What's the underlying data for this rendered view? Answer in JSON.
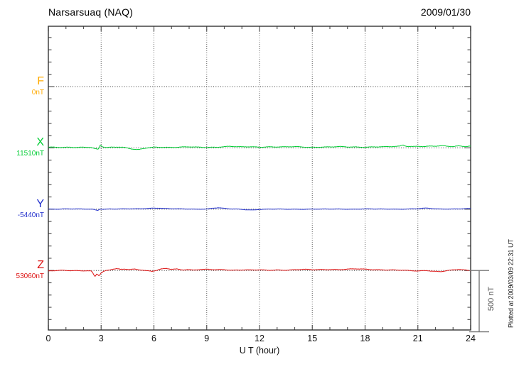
{
  "header": {
    "title": "Narsarsuaq (NAQ)",
    "date": "2009/01/30"
  },
  "chart_data": {
    "type": "line",
    "title": "Narsarsuaq (NAQ)",
    "date": "2009/01/30",
    "xlabel": "U T (hour)",
    "x_range": [
      0,
      24
    ],
    "x_ticks": [
      0,
      3,
      6,
      9,
      12,
      15,
      18,
      21,
      24
    ],
    "x_minor_step_hours": 1,
    "y_minor_tick_nT": 100,
    "series_baseline_spacing_nT": 500,
    "grid": "dotted vertical lines at 3-hour intervals, dotted horizontal baseline per component",
    "scale_bar": {
      "label": "500 nT",
      "value_nT": 500,
      "color": "#777777"
    },
    "plotted_at": "Plotted at 2009/03/09 22:31 UT",
    "series": [
      {
        "name": "F",
        "color": "#FFAA00",
        "baseline_label": "0nT",
        "baseline_nT": 0,
        "has_data": false,
        "noise_nT": 0,
        "points": []
      },
      {
        "name": "X",
        "color": "#00CC33",
        "baseline_label": "11510nT",
        "baseline_nT": 11510,
        "has_data": true,
        "noise_nT": 4,
        "points": [
          [
            0,
            6
          ],
          [
            0.5,
            5
          ],
          [
            1,
            7
          ],
          [
            1.5,
            5
          ],
          [
            2,
            4
          ],
          [
            2.4,
            3
          ],
          [
            2.7,
            -10
          ],
          [
            2.85,
            -13
          ],
          [
            2.95,
            22
          ],
          [
            3.1,
            8
          ],
          [
            3.3,
            4
          ],
          [
            3.6,
            7
          ],
          [
            4,
            9
          ],
          [
            4.3,
            5
          ],
          [
            4.6,
            -5
          ],
          [
            4.9,
            -13
          ],
          [
            5.15,
            -16
          ],
          [
            5.4,
            -7
          ],
          [
            5.7,
            1
          ],
          [
            6,
            6
          ],
          [
            6.5,
            7
          ],
          [
            7,
            5
          ],
          [
            7.5,
            6
          ],
          [
            8,
            7
          ],
          [
            8.5,
            5
          ],
          [
            9,
            5
          ],
          [
            9.5,
            7
          ],
          [
            10,
            10
          ],
          [
            10.3,
            13
          ],
          [
            10.7,
            8
          ],
          [
            11,
            7
          ],
          [
            11.5,
            9
          ],
          [
            12,
            7
          ],
          [
            12.5,
            10
          ],
          [
            13,
            8
          ],
          [
            13.5,
            7
          ],
          [
            14,
            9
          ],
          [
            14.5,
            7
          ],
          [
            15,
            6
          ],
          [
            15.5,
            8
          ],
          [
            16,
            7
          ],
          [
            16.5,
            9
          ],
          [
            17,
            7
          ],
          [
            17.5,
            8
          ],
          [
            18,
            7
          ],
          [
            18.5,
            9
          ],
          [
            19,
            8
          ],
          [
            19.5,
            9
          ],
          [
            19.95,
            13
          ],
          [
            20.15,
            24
          ],
          [
            20.35,
            14
          ],
          [
            20.7,
            12
          ],
          [
            21,
            15
          ],
          [
            21.4,
            11
          ],
          [
            21.7,
            14
          ],
          [
            22,
            13
          ],
          [
            22.5,
            15
          ],
          [
            23,
            11
          ],
          [
            23.35,
            18
          ],
          [
            23.7,
            13
          ],
          [
            24,
            15
          ]
        ]
      },
      {
        "name": "Y",
        "color": "#2230CC",
        "baseline_label": "-5440nT",
        "baseline_nT": -5440,
        "has_data": true,
        "noise_nT": 2.5,
        "points": [
          [
            0,
            2
          ],
          [
            0.5,
            1
          ],
          [
            1,
            2
          ],
          [
            1.5,
            1
          ],
          [
            2,
            1
          ],
          [
            2.5,
            1
          ],
          [
            2.8,
            -9
          ],
          [
            2.95,
            3
          ],
          [
            3.1,
            0
          ],
          [
            3.5,
            2
          ],
          [
            4,
            1
          ],
          [
            4.5,
            2
          ],
          [
            5,
            3
          ],
          [
            5.5,
            6
          ],
          [
            5.9,
            9
          ],
          [
            6.3,
            9
          ],
          [
            6.6,
            5
          ],
          [
            7,
            3
          ],
          [
            7.5,
            2
          ],
          [
            8,
            2
          ],
          [
            8.5,
            1
          ],
          [
            9,
            2
          ],
          [
            9.35,
            8
          ],
          [
            9.65,
            11
          ],
          [
            9.95,
            6
          ],
          [
            10.3,
            2
          ],
          [
            10.8,
            1
          ],
          [
            11.3,
            -4
          ],
          [
            11.6,
            -6
          ],
          [
            12,
            -2
          ],
          [
            12.5,
            0
          ],
          [
            13,
            1
          ],
          [
            13.5,
            0
          ],
          [
            14,
            1
          ],
          [
            14.5,
            0
          ],
          [
            15,
            1
          ],
          [
            15.5,
            0
          ],
          [
            16,
            1
          ],
          [
            16.5,
            2
          ],
          [
            17,
            1
          ],
          [
            17.5,
            1
          ],
          [
            18,
            2
          ],
          [
            18.5,
            1
          ],
          [
            19,
            1
          ],
          [
            19.5,
            2
          ],
          [
            20,
            1
          ],
          [
            20.5,
            2
          ],
          [
            21,
            3
          ],
          [
            21.45,
            8
          ],
          [
            21.8,
            5
          ],
          [
            22.2,
            2
          ],
          [
            22.6,
            3
          ],
          [
            23,
            2
          ],
          [
            23.5,
            3
          ],
          [
            24,
            4
          ]
        ]
      },
      {
        "name": "Z",
        "color": "#DD1111",
        "baseline_label": "53060nT",
        "baseline_nT": 53060,
        "has_data": true,
        "noise_nT": 4,
        "points": [
          [
            0,
            -5
          ],
          [
            0.4,
            -2
          ],
          [
            0.8,
            0
          ],
          [
            1.3,
            -1
          ],
          [
            1.8,
            0
          ],
          [
            2.2,
            -1
          ],
          [
            2.45,
            -4
          ],
          [
            2.55,
            -26
          ],
          [
            2.65,
            -50
          ],
          [
            2.75,
            -27
          ],
          [
            2.88,
            -43
          ],
          [
            3,
            -22
          ],
          [
            3.15,
            -9
          ],
          [
            3.3,
            -2
          ],
          [
            3.5,
            4
          ],
          [
            3.7,
            11
          ],
          [
            3.9,
            14
          ],
          [
            4.1,
            9
          ],
          [
            4.35,
            13
          ],
          [
            4.6,
            10
          ],
          [
            4.9,
            13
          ],
          [
            5.1,
            8
          ],
          [
            5.35,
            4
          ],
          [
            5.6,
            -3
          ],
          [
            5.9,
            -8
          ],
          [
            6.15,
            0
          ],
          [
            6.4,
            10
          ],
          [
            6.7,
            16
          ],
          [
            7,
            11
          ],
          [
            7.3,
            13
          ],
          [
            7.6,
            7
          ],
          [
            7.9,
            9
          ],
          [
            8.2,
            4
          ],
          [
            8.6,
            7
          ],
          [
            9,
            8
          ],
          [
            9.5,
            6
          ],
          [
            10,
            8
          ],
          [
            10.5,
            4
          ],
          [
            11,
            6
          ],
          [
            11.5,
            3
          ],
          [
            12,
            4
          ],
          [
            12.5,
            2
          ],
          [
            13,
            6
          ],
          [
            13.5,
            4
          ],
          [
            14,
            6
          ],
          [
            14.5,
            8
          ],
          [
            15,
            6
          ],
          [
            15.5,
            8
          ],
          [
            16,
            10
          ],
          [
            16.5,
            8
          ],
          [
            17,
            10
          ],
          [
            17.5,
            12
          ],
          [
            18,
            10
          ],
          [
            18.5,
            8
          ],
          [
            19,
            7
          ],
          [
            19.5,
            5
          ],
          [
            20,
            2
          ],
          [
            20.5,
            -2
          ],
          [
            21,
            -4
          ],
          [
            21.5,
            1
          ],
          [
            22,
            -6
          ],
          [
            22.3,
            -9
          ],
          [
            22.7,
            -1
          ],
          [
            23,
            3
          ],
          [
            23.35,
            8
          ],
          [
            23.7,
            3
          ],
          [
            24,
            -1
          ]
        ]
      }
    ]
  }
}
